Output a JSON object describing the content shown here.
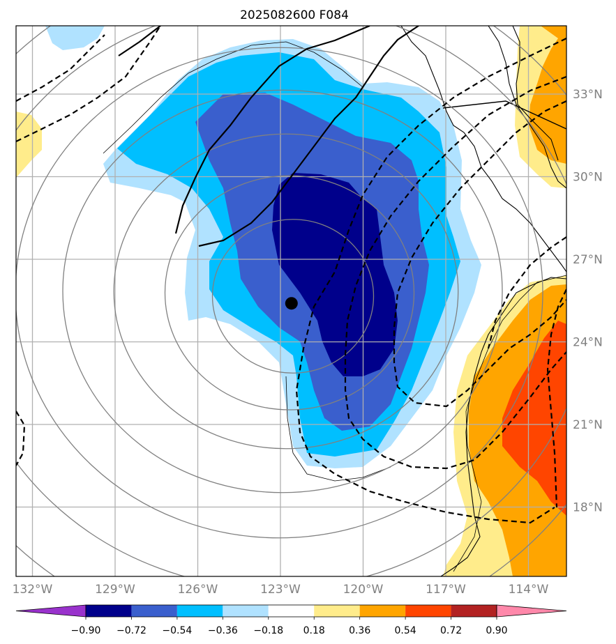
{
  "title": "2025082600 F084",
  "lon_ticks": [
    "132°W",
    "129°W",
    "126°W",
    "123°W",
    "120°W",
    "117°W",
    "114°W"
  ],
  "lat_ticks": [
    "33°N",
    "30°N",
    "27°N",
    "24°N",
    "21°N",
    "18°N"
  ],
  "colorbar": {
    "labels": [
      "−0.90",
      "−0.72",
      "−0.54",
      "−0.36",
      "−0.18",
      "0.18",
      "0.36",
      "0.54",
      "0.72",
      "0.90"
    ],
    "colors": [
      "#9932cc",
      "#00008b",
      "#3a5fcd",
      "#00bfff",
      "#b0e2ff",
      "#ffffff",
      "#ffec8b",
      "#ffa500",
      "#ff4500",
      "#b22222",
      "#ff88aa"
    ]
  },
  "fill_colors": {
    "band_018": "#b0e2ff",
    "band_036": "#00bfff",
    "band_054": "#3a5fcd",
    "band_072": "#00008b",
    "warm_018": "#ffec8b",
    "warm_036": "#ffa500",
    "warm_054": "#ff4500"
  },
  "storm_center": {
    "lon": -122.6,
    "lat": 25.4
  }
}
